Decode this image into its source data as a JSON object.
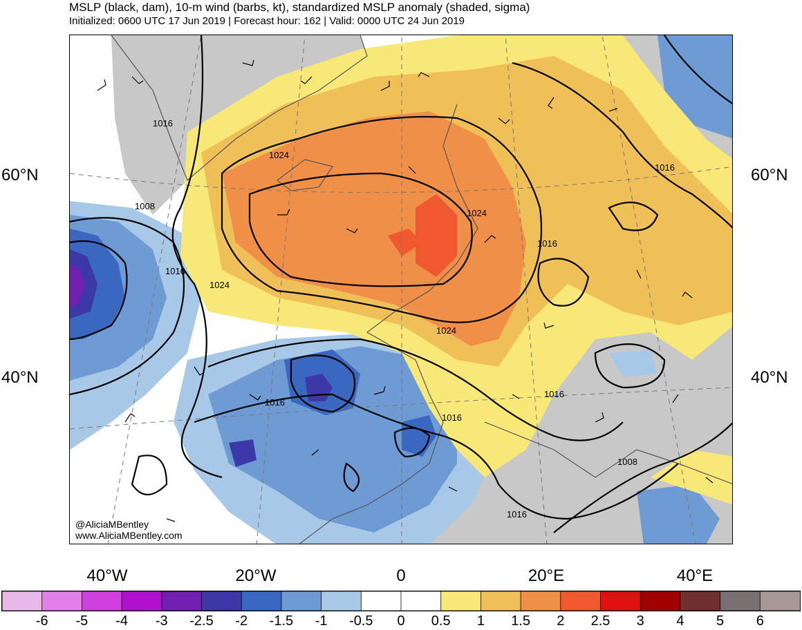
{
  "header": {
    "title": "MSLP (black, dam), 10-m wind (barbs, kt), standardized MSLP anomaly (shaded, sigma)",
    "subtitle": "Initialized: 0600 UTC 17 Jun 2019 | Forecast hour: 162 | Valid: 0000 UTC 24 Jun 2019"
  },
  "map": {
    "lat_labels": [
      "60°N",
      "40°N"
    ],
    "lon_labels": [
      "40°W",
      "20°W",
      "0",
      "20°E",
      "40°E"
    ],
    "isobar_labels": [
      "1016",
      "1024",
      "1008",
      "1016",
      "1024",
      "1024",
      "1024",
      "1016",
      "1016",
      "1016",
      "1016",
      "1016",
      "1008",
      "1016"
    ],
    "credit_handle": "@AliciaMBentley",
    "credit_url": "www.AliciaMBentley.com",
    "colors": {
      "ocean_neutral": "#ffffff",
      "land_gray": "#c8c8c8",
      "coast": "#555555"
    }
  },
  "colorbar": {
    "labels": [
      "-6",
      "-5",
      "-4",
      "-3",
      "-2.5",
      "-2",
      "-1.5",
      "-1",
      "-0.5",
      "0",
      "0.5",
      "1",
      "1.5",
      "2",
      "2.5",
      "3",
      "4",
      "5",
      "6"
    ],
    "colors": [
      "#e8b8e8",
      "#e080e8",
      "#d040e0",
      "#b010d0",
      "#7020b0",
      "#3c38a8",
      "#3a68c0",
      "#6e9bd3",
      "#a8c8e8",
      "#ffffff",
      "#ffffff",
      "#f8e878",
      "#f0c058",
      "#f09048",
      "#f05830",
      "#e01010",
      "#a00000",
      "#703030",
      "#787070",
      "#a89898"
    ]
  }
}
